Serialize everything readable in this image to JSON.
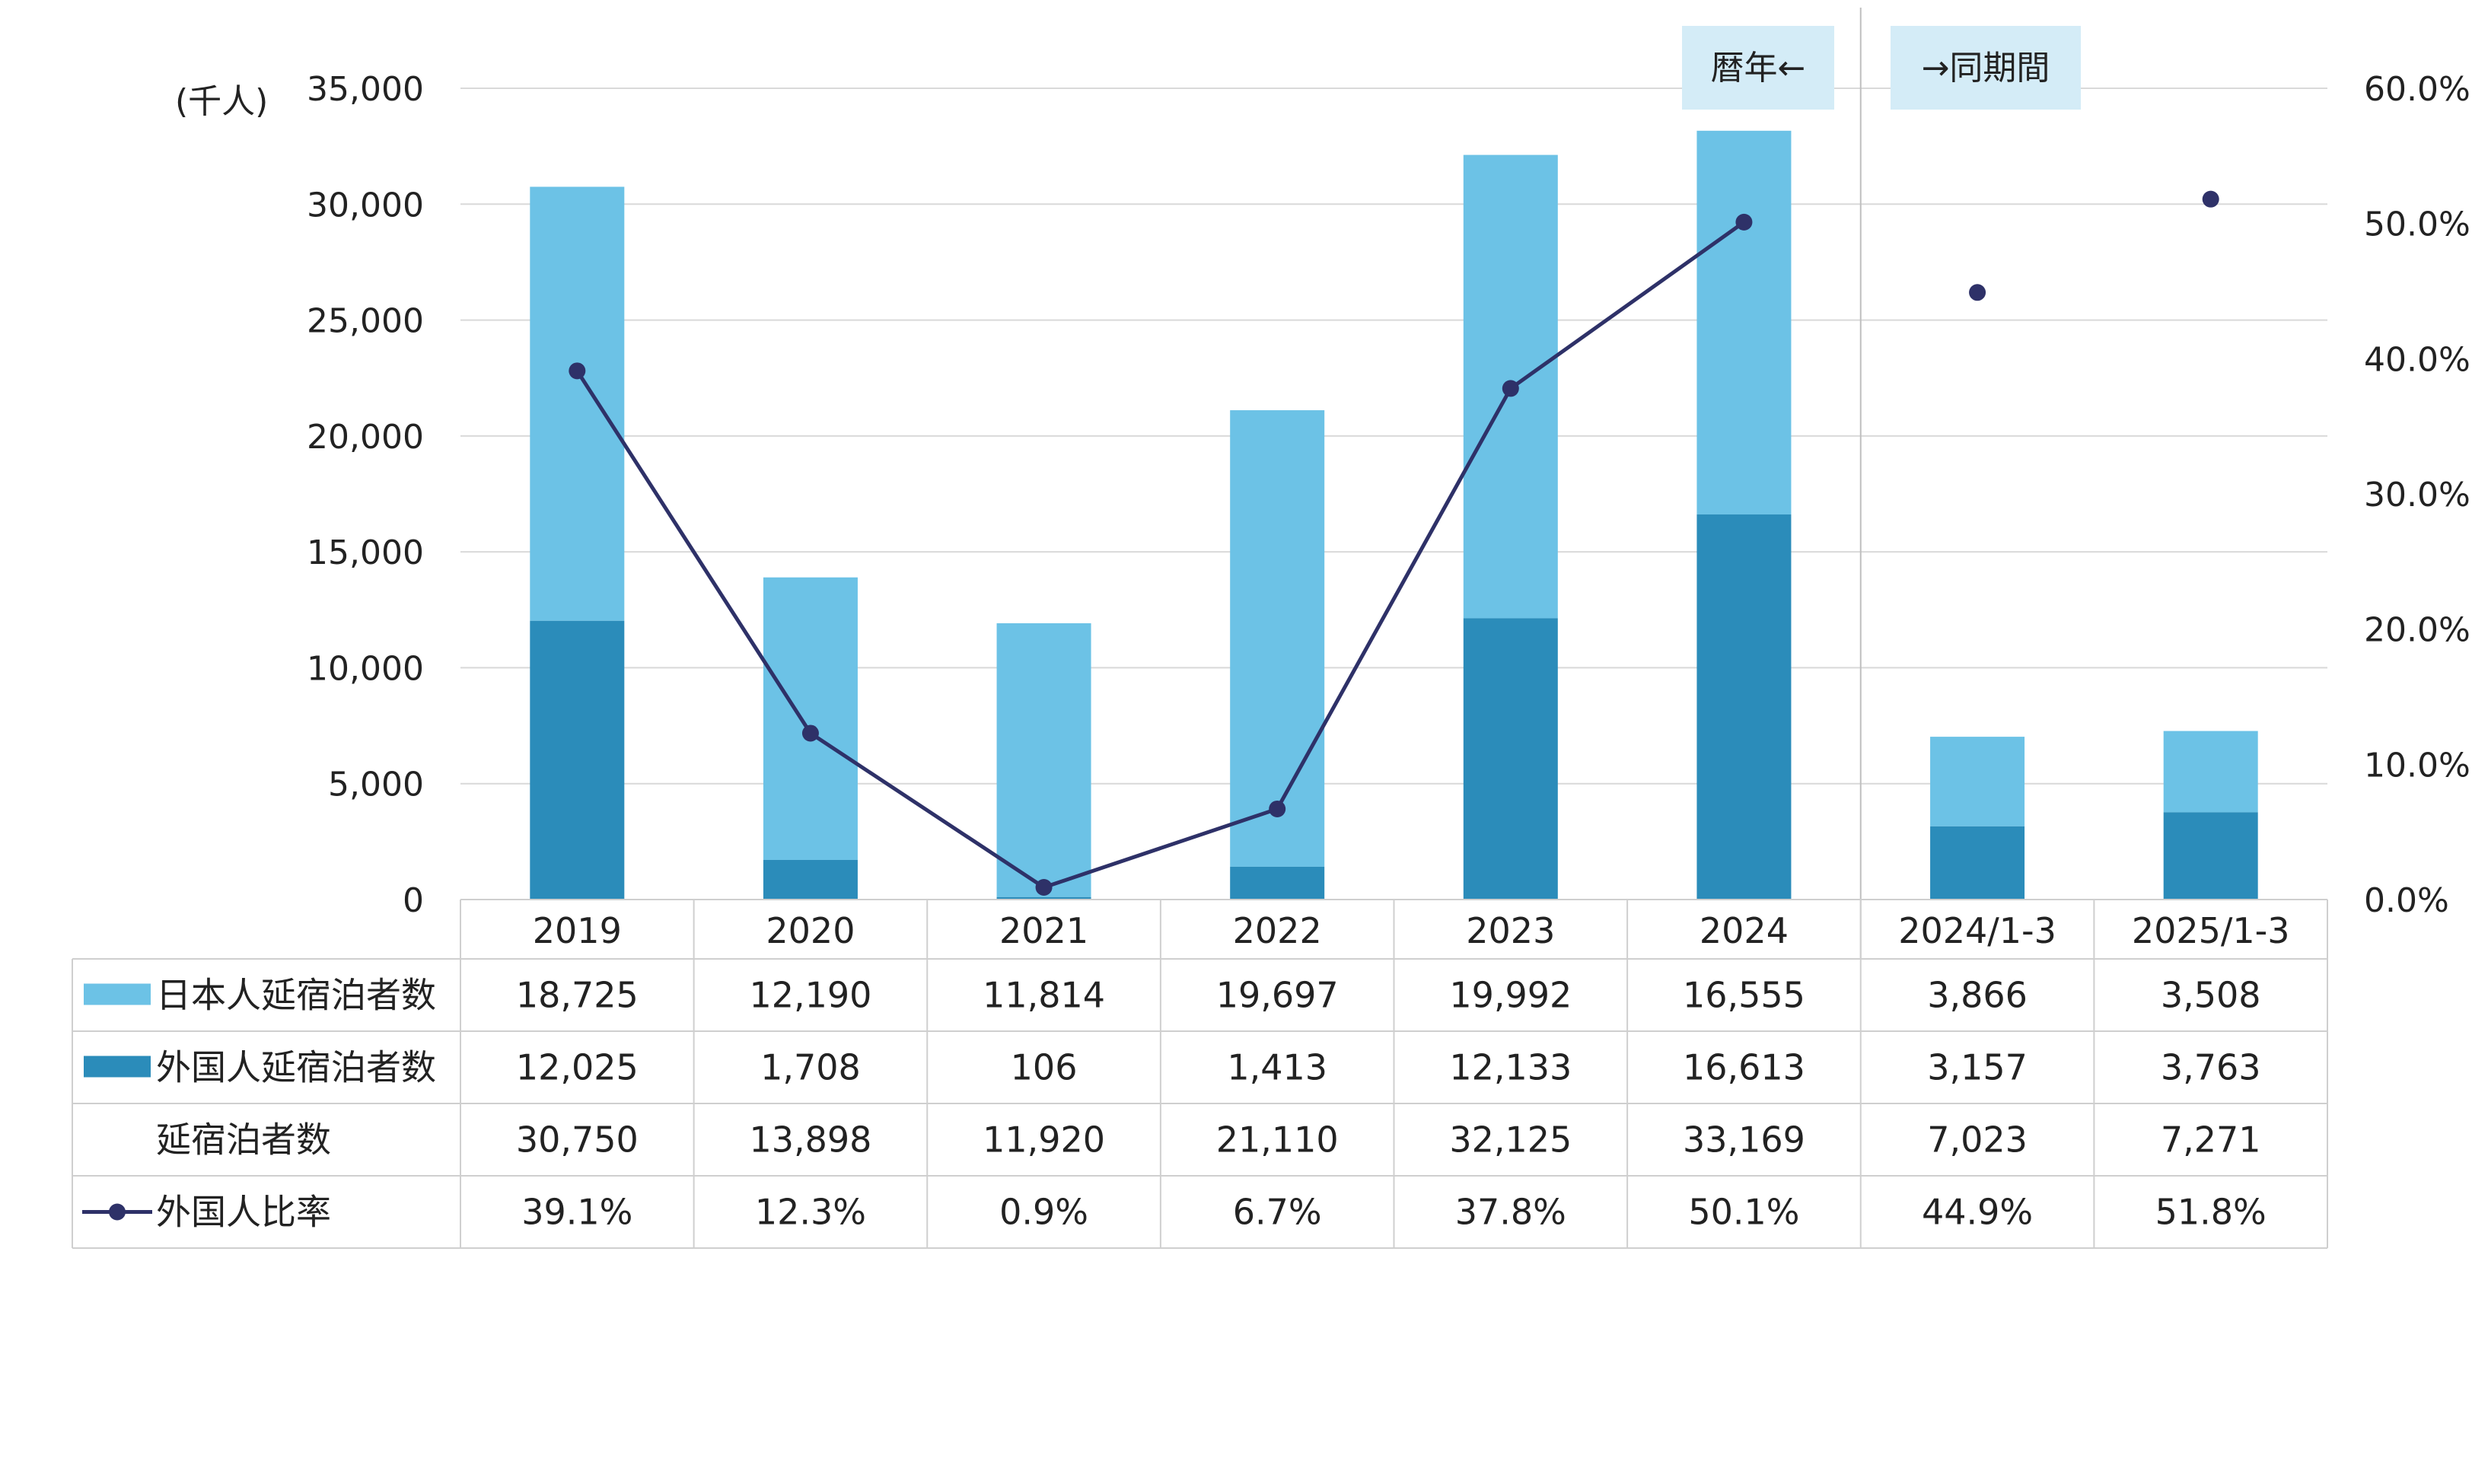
{
  "chart_data": {
    "type": "bar",
    "subtype": "stacked bar + line (secondary axis) with data table",
    "unit_label": "(千人)",
    "categories": [
      "2019",
      "2020",
      "2021",
      "2022",
      "2023",
      "2024",
      "2024/1-3",
      "2025/1-3"
    ],
    "series": [
      {
        "name": "日本人延宿泊者数",
        "type": "bar",
        "axis": "left",
        "color": "#6CC2E6",
        "values": [
          18725,
          12190,
          11814,
          19697,
          19992,
          16555,
          3866,
          3508
        ],
        "labels": [
          "18,725",
          "12,190",
          "11,814",
          "19,697",
          "19,992",
          "16,555",
          "3,866",
          "3,508"
        ]
      },
      {
        "name": "外国人延宿泊者数",
        "type": "bar",
        "axis": "left",
        "color": "#2B8CBA",
        "values": [
          12025,
          1708,
          106,
          1413,
          12133,
          16613,
          3157,
          3763
        ],
        "labels": [
          "12,025",
          "1,708",
          "106",
          "1,413",
          "12,133",
          "16,613",
          "3,157",
          "3,763"
        ]
      },
      {
        "name": "延宿泊者数",
        "type": "total",
        "values": [
          30750,
          13898,
          11920,
          21110,
          32125,
          33169,
          7023,
          7271
        ],
        "labels": [
          "30,750",
          "13,898",
          "11,920",
          "21,110",
          "32,125",
          "33,169",
          "7,023",
          "7,271"
        ]
      },
      {
        "name": "外国人比率",
        "type": "line",
        "axis": "right",
        "color": "#2E3168",
        "line_through_index": 5,
        "values": [
          39.1,
          12.3,
          0.9,
          6.7,
          37.8,
          50.1,
          44.9,
          51.8
        ],
        "labels": [
          "39.1%",
          "12.3%",
          "0.9%",
          "6.7%",
          "37.8%",
          "50.1%",
          "44.9%",
          "51.8%"
        ]
      }
    ],
    "y_left": {
      "min": 0,
      "max": 35000,
      "ticks": [
        0,
        5000,
        10000,
        15000,
        20000,
        25000,
        30000,
        35000
      ],
      "tick_labels": [
        "0",
        "5,000",
        "10,000",
        "15,000",
        "20,000",
        "25,000",
        "30,000",
        "35,000"
      ]
    },
    "y_right": {
      "min": 0,
      "max": 60,
      "ticks": [
        0,
        10,
        20,
        30,
        40,
        50,
        60
      ],
      "tick_labels": [
        "0.0%",
        "10.0%",
        "20.0%",
        "30.0%",
        "40.0%",
        "50.0%",
        "60.0%"
      ]
    },
    "annotations": [
      "暦年←",
      "→同期間"
    ],
    "annotation_bg": "#D4ECF7",
    "grid": true
  }
}
